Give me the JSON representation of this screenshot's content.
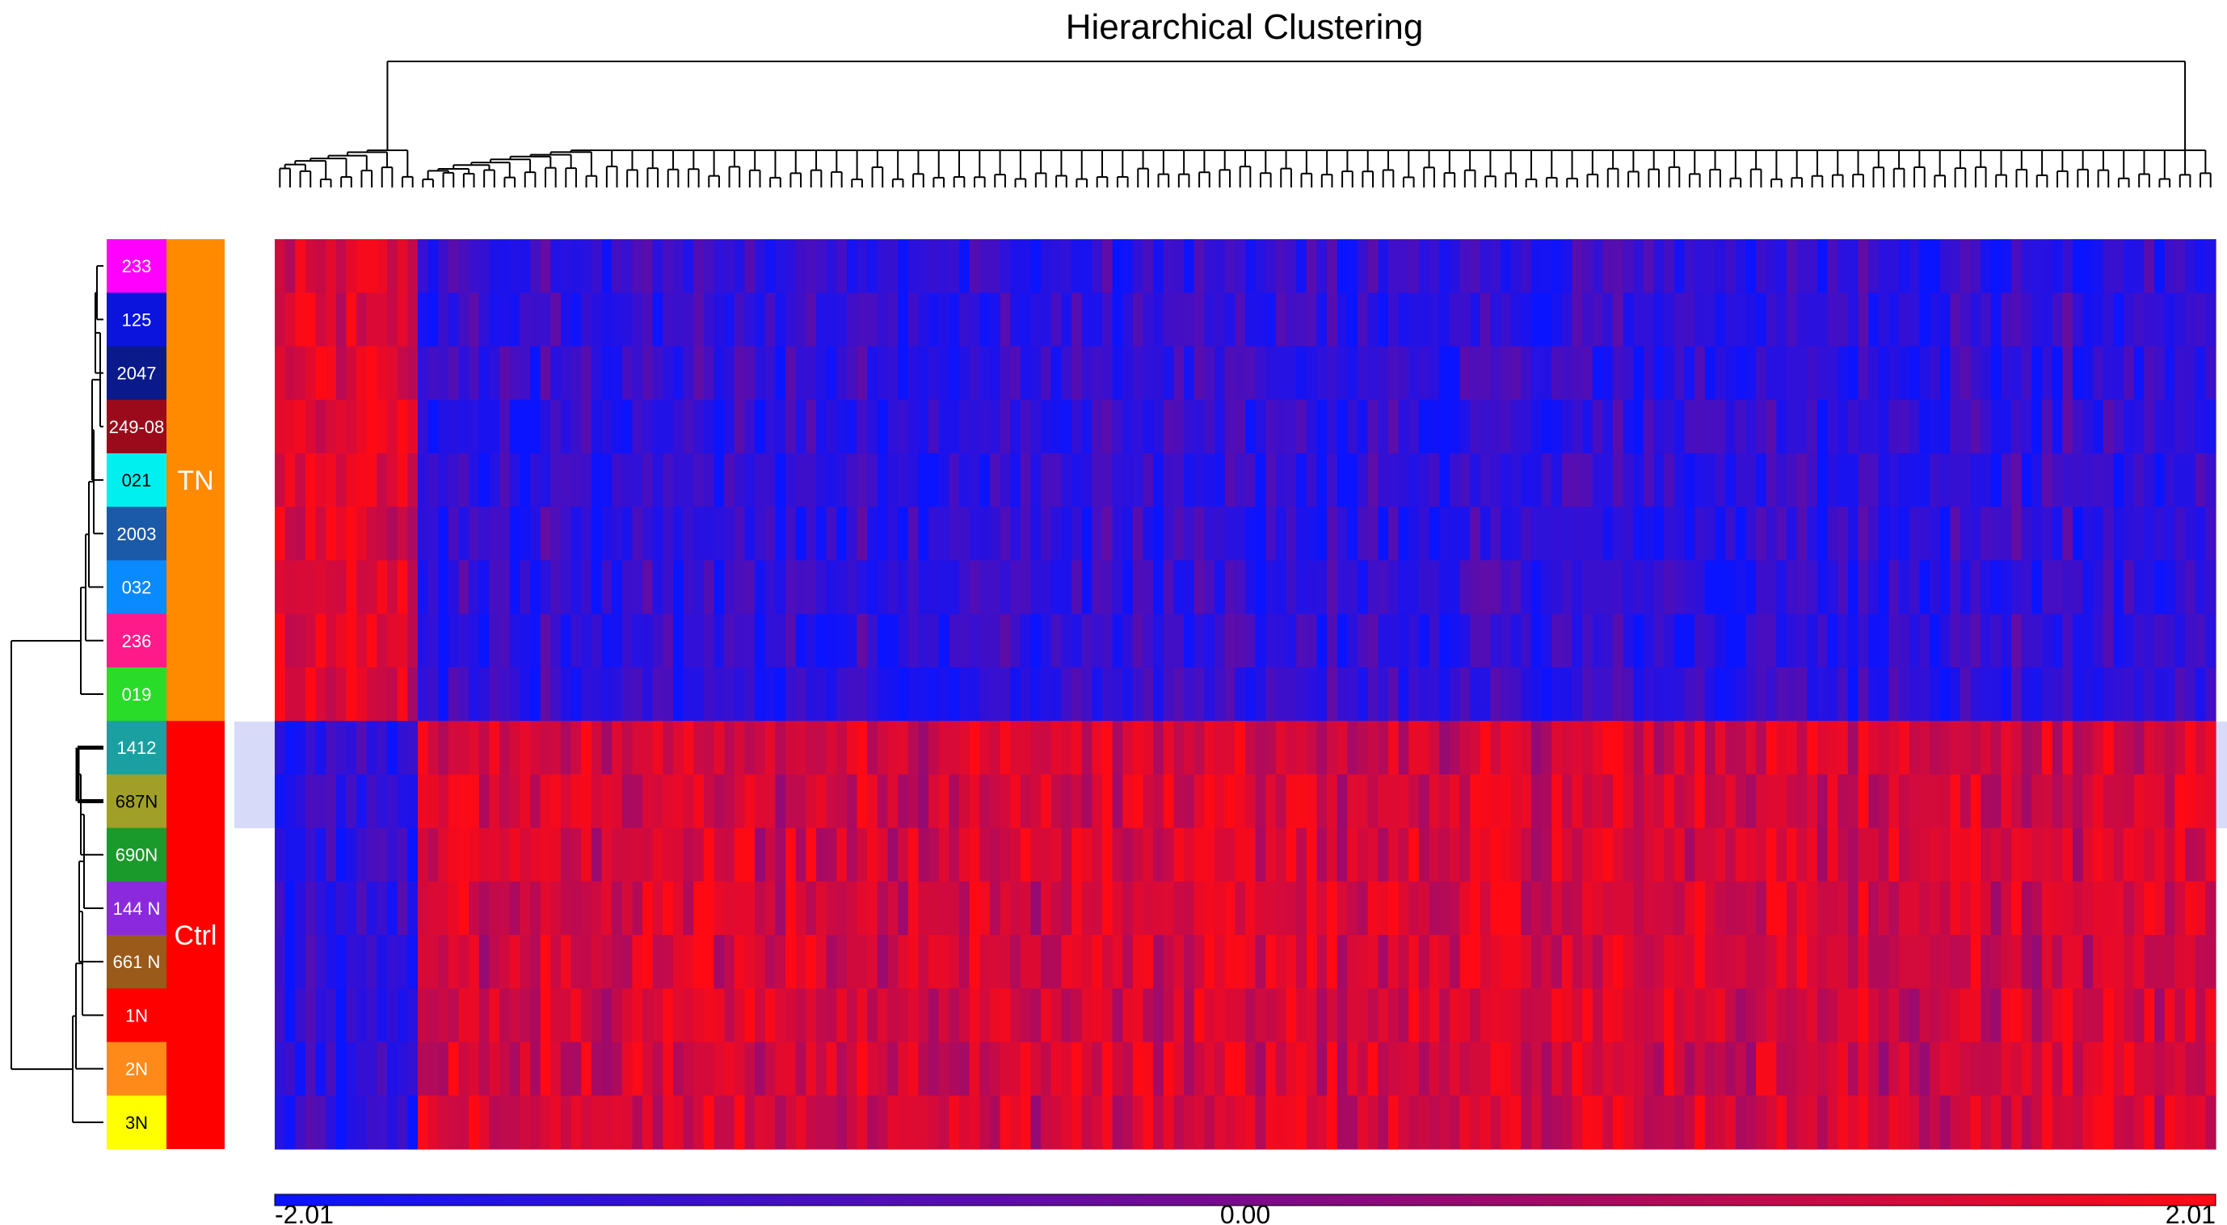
{
  "chart_data": {
    "type": "heatmap",
    "title": "Hierarchical Clustering",
    "color_scale": {
      "min": -2.01,
      "mid": 0.0,
      "max": 2.01,
      "min_label": "-2.01",
      "mid_label": "0.00",
      "max_label": "2.01",
      "colors": [
        "#0a14ff",
        "#7a0a8c",
        "#ff0a14"
      ]
    },
    "groups": [
      {
        "label": "TN",
        "color": "#ff8a00",
        "samples": [
          "233",
          "125",
          "2047",
          "249-08",
          "021",
          "2003",
          "032",
          "236",
          "019"
        ]
      },
      {
        "label": "Ctrl",
        "color": "#ff0000",
        "samples": [
          "1412",
          "687N",
          "690N",
          "144 N",
          "661 N",
          "1N",
          "2N",
          "3N"
        ]
      }
    ],
    "samples": [
      {
        "label": "233",
        "color": "#ff00ff",
        "group": "TN"
      },
      {
        "label": "125",
        "color": "#0a14dc",
        "group": "TN"
      },
      {
        "label": "2047",
        "color": "#0a1a8a",
        "group": "TN"
      },
      {
        "label": "249-08",
        "color": "#9a0a1a",
        "group": "TN"
      },
      {
        "label": "021",
        "color": "#00f0f0",
        "group": "TN"
      },
      {
        "label": "2003",
        "color": "#1a5aa8",
        "group": "TN"
      },
      {
        "label": "032",
        "color": "#0a8aff",
        "group": "TN"
      },
      {
        "label": "236",
        "color": "#ff1a8a",
        "group": "TN"
      },
      {
        "label": "019",
        "color": "#2adc2a",
        "group": "TN"
      },
      {
        "label": "1412",
        "color": "#1aa0a0",
        "group": "Ctrl"
      },
      {
        "label": "687N",
        "color": "#a0a028",
        "group": "Ctrl"
      },
      {
        "label": "690N",
        "color": "#1a9a2a",
        "group": "Ctrl"
      },
      {
        "label": "144 N",
        "color": "#8a2adc",
        "group": "Ctrl"
      },
      {
        "label": "661 N",
        "color": "#9a5a1a",
        "group": "Ctrl"
      },
      {
        "label": "1N",
        "color": "#ff0000",
        "group": "Ctrl"
      },
      {
        "label": "2N",
        "color": "#ff8a1a",
        "group": "Ctrl"
      },
      {
        "label": "3N",
        "color": "#ffff00",
        "group": "Ctrl"
      }
    ],
    "highlighted_rows": [
      "1412",
      "687N"
    ],
    "column_pattern": {
      "description_of_blocks": "left block of columns high in TN and low in Ctrl; remaining columns low in TN and high in Ctrl",
      "tn_high_fraction": 0.074
    }
  }
}
